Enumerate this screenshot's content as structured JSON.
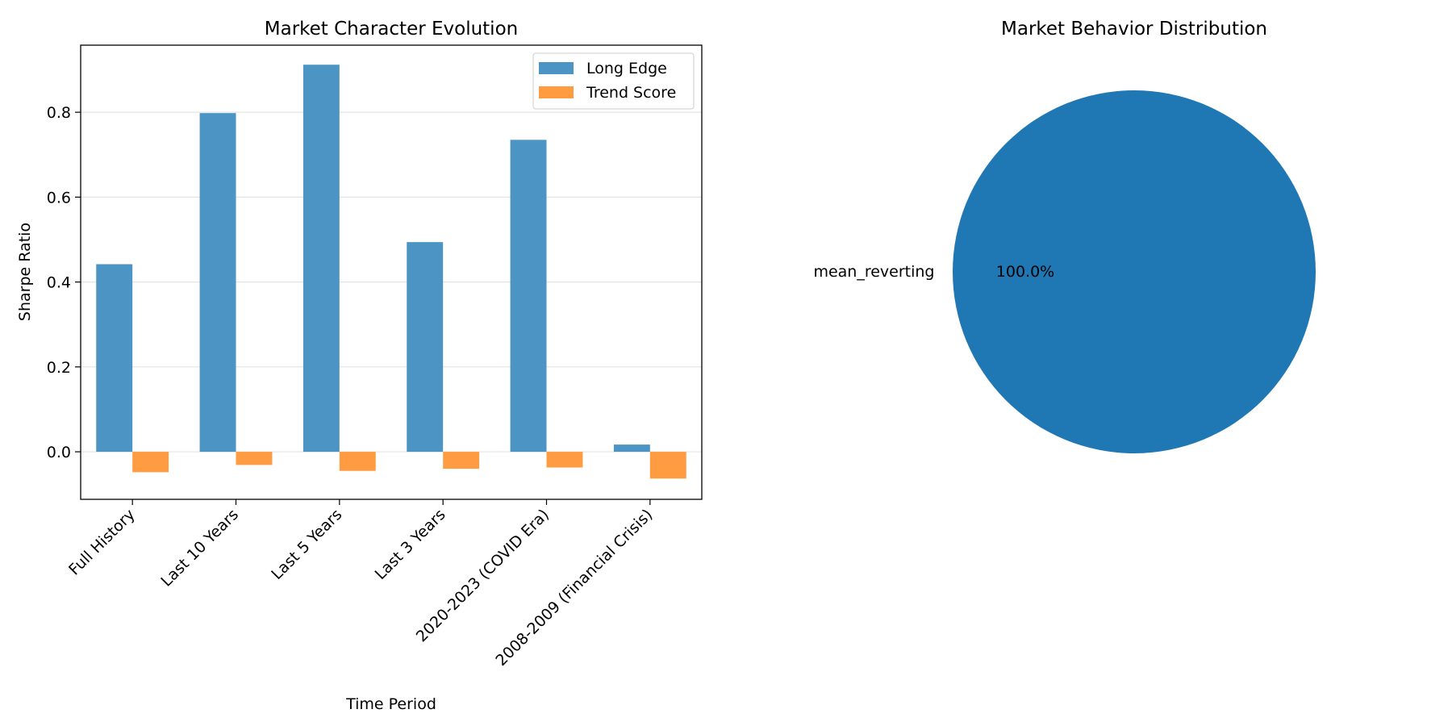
{
  "chart_data": [
    {
      "type": "bar",
      "title": "Market Character Evolution",
      "xlabel": "Time Period",
      "ylabel": "Sharpe Ratio",
      "categories": [
        "Full History",
        "Last 10 Years",
        "Last 5 Years",
        "Last 3 Years",
        "2020-2023 (COVID Era)",
        "2008-2009 (Financial Crisis)"
      ],
      "series": [
        {
          "name": "Long Edge",
          "color": "#4c94c4",
          "values": [
            0.442,
            0.798,
            0.912,
            0.494,
            0.735,
            0.017
          ]
        },
        {
          "name": "Trend Score",
          "color": "#ff9b40",
          "values": [
            -0.048,
            -0.031,
            -0.045,
            -0.04,
            -0.037,
            -0.063
          ]
        }
      ],
      "ylim": [
        -0.112,
        0.958
      ],
      "yticks": [
        0.0,
        0.2,
        0.4,
        0.6,
        0.8
      ],
      "ytick_labels": [
        "0.0",
        "0.2",
        "0.4",
        "0.6",
        "0.8"
      ],
      "grid": "y",
      "legend": "top-right"
    },
    {
      "type": "pie",
      "title": "Market Behavior Distribution",
      "slices": [
        {
          "label": "mean_reverting",
          "value": 100.0,
          "pct_label": "100.0%",
          "color": "#1f77b4"
        }
      ]
    }
  ]
}
